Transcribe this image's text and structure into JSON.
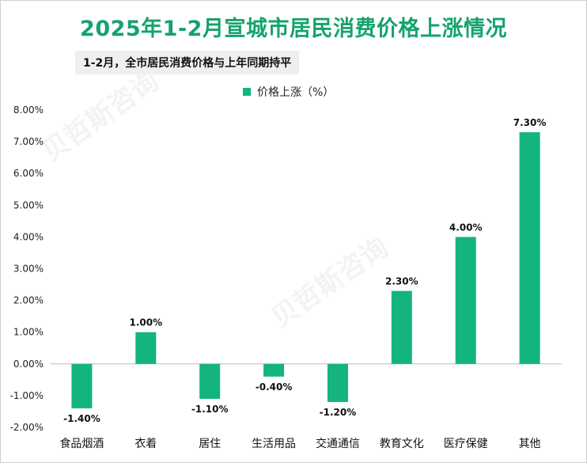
{
  "title": "2025年1-2月宣城市居民消费价格上涨情况",
  "subtitle": "1-2月，全市居民消费价格与上年同期持平",
  "watermark": "贝哲斯咨询",
  "colors": {
    "bar": "#14b47e",
    "title": "#14a36d",
    "grid": "#e3e3e3"
  },
  "chart_data": {
    "type": "bar",
    "categories": [
      "食品烟酒",
      "衣着",
      "居住",
      "生活用品",
      "交通通信",
      "教育文化",
      "医疗保健",
      "其他"
    ],
    "series": [
      {
        "name": "价格上涨（%）",
        "values": [
          -1.4,
          1.0,
          -1.1,
          -0.4,
          -1.2,
          2.3,
          4.0,
          7.3
        ]
      }
    ],
    "value_labels": [
      "-1.40%",
      "1.00%",
      "-1.10%",
      "-0.40%",
      "-1.20%",
      "2.30%",
      "4.00%",
      "7.30%"
    ],
    "y_ticks": [
      "-2.00%",
      "-1.00%",
      "0.00%",
      "1.00%",
      "2.00%",
      "3.00%",
      "4.00%",
      "5.00%",
      "6.00%",
      "7.00%",
      "8.00%"
    ],
    "ylim": [
      -2,
      8
    ],
    "grid": false,
    "legend_position": "top-center"
  }
}
